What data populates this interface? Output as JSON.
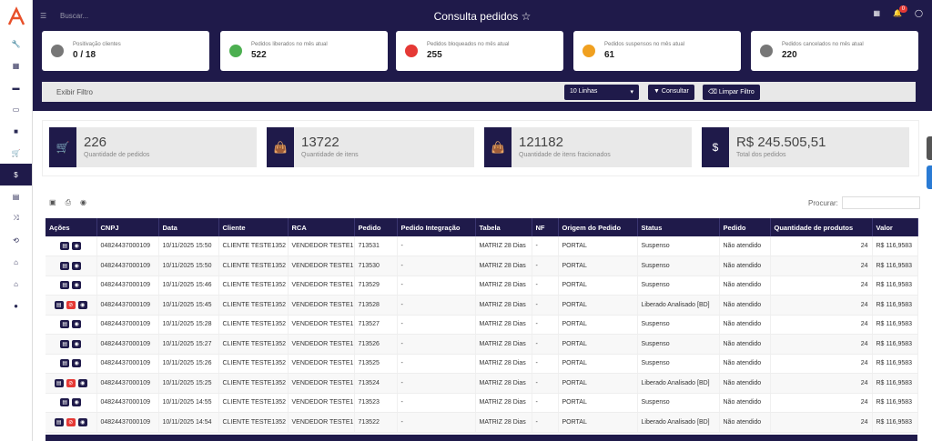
{
  "topbar": {
    "search_placeholder": "Buscar...",
    "title": "Consulta pedidos",
    "notif_count": "0"
  },
  "colors": {
    "primary": "#1f1a4a",
    "green": "#4caf50",
    "red": "#e53935",
    "orange": "#f0a020",
    "grey": "#777"
  },
  "sidebar": {
    "items": [
      "wrench-icon",
      "calculator-icon",
      "book-icon",
      "money-icon",
      "briefcase-icon",
      "cart-icon",
      "dollar-icon",
      "table-icon",
      "shuffle-icon",
      "refresh-icon",
      "store-icon",
      "home-icon",
      "user-icon"
    ]
  },
  "stats": [
    {
      "label": "Positivação clientes",
      "value": "0 / 18",
      "icon": "user-icon",
      "color": "#777"
    },
    {
      "label": "Pedidos liberados no mês atual",
      "value": "522",
      "icon": "check-icon",
      "color": "#4caf50"
    },
    {
      "label": "Pedidos bloqueados no mês atual",
      "value": "255",
      "icon": "lock-icon",
      "color": "#e53935"
    },
    {
      "label": "Pedidos suspensos no mês atual",
      "value": "61",
      "icon": "pause-icon",
      "color": "#f0a020"
    },
    {
      "label": "Pedidos cancelados no mês atual",
      "value": "220",
      "icon": "x-icon",
      "color": "#777"
    }
  ],
  "filter": {
    "toggle": "Exibir Filtro",
    "lines": "10 Linhas",
    "consultar": "Consultar",
    "limpar": "Limpar Filtro"
  },
  "kpis": [
    {
      "value": "226",
      "label": "Quantidade de pedidos",
      "icon": "cart-icon"
    },
    {
      "value": "13722",
      "label": "Quantidade de itens",
      "icon": "bag-icon"
    },
    {
      "value": "121182",
      "label": "Quantidade de itens fracionados",
      "icon": "bag-icon"
    },
    {
      "value": "R$ 245.505,51",
      "label": "Total dos pedidos",
      "icon": "dollar-icon"
    }
  ],
  "table": {
    "search_label": "Procurar:",
    "headers": [
      "Ações",
      "CNPJ",
      "Data",
      "Cliente",
      "RCA",
      "Pedido",
      "Pedido Integração",
      "Tabela",
      "NF",
      "Origem do Pedido",
      "Status",
      "Pedido",
      "Quantidade de produtos",
      "Valor"
    ],
    "rows": [
      {
        "cnpj": "04824437000109",
        "data": "10/11/2025 15:50",
        "cliente": "CLIENTE TESTE1352",
        "rca": "VENDEDOR TESTE1",
        "pedido": "713531",
        "integ": "-",
        "tabela": "MATRIZ 28 Dias",
        "nf": "-",
        "origem": "PORTAL",
        "status": "Suspenso",
        "ped": "Não atendido",
        "qtd": "24",
        "valor": "R$ 116,9583",
        "red": false
      },
      {
        "cnpj": "04824437000109",
        "data": "10/11/2025 15:50",
        "cliente": "CLIENTE TESTE1352",
        "rca": "VENDEDOR TESTE1",
        "pedido": "713530",
        "integ": "-",
        "tabela": "MATRIZ 28 Dias",
        "nf": "-",
        "origem": "PORTAL",
        "status": "Suspenso",
        "ped": "Não atendido",
        "qtd": "24",
        "valor": "R$ 116,9583",
        "red": false
      },
      {
        "cnpj": "04824437000109",
        "data": "10/11/2025 15:46",
        "cliente": "CLIENTE TESTE1352",
        "rca": "VENDEDOR TESTE1",
        "pedido": "713529",
        "integ": "-",
        "tabela": "MATRIZ 28 Dias",
        "nf": "-",
        "origem": "PORTAL",
        "status": "Suspenso",
        "ped": "Não atendido",
        "qtd": "24",
        "valor": "R$ 116,9583",
        "red": false
      },
      {
        "cnpj": "04824437000109",
        "data": "10/11/2025 15:45",
        "cliente": "CLIENTE TESTE1352",
        "rca": "VENDEDOR TESTE1",
        "pedido": "713528",
        "integ": "-",
        "tabela": "MATRIZ 28 Dias",
        "nf": "-",
        "origem": "PORTAL",
        "status": "Liberado Analisado [BD]",
        "ped": "Não atendido",
        "qtd": "24",
        "valor": "R$ 116,9583",
        "red": true
      },
      {
        "cnpj": "04824437000109",
        "data": "10/11/2025 15:28",
        "cliente": "CLIENTE TESTE1352",
        "rca": "VENDEDOR TESTE1",
        "pedido": "713527",
        "integ": "-",
        "tabela": "MATRIZ 28 Dias",
        "nf": "-",
        "origem": "PORTAL",
        "status": "Suspenso",
        "ped": "Não atendido",
        "qtd": "24",
        "valor": "R$ 116,9583",
        "red": false
      },
      {
        "cnpj": "04824437000109",
        "data": "10/11/2025 15:27",
        "cliente": "CLIENTE TESTE1352",
        "rca": "VENDEDOR TESTE1",
        "pedido": "713526",
        "integ": "-",
        "tabela": "MATRIZ 28 Dias",
        "nf": "-",
        "origem": "PORTAL",
        "status": "Suspenso",
        "ped": "Não atendido",
        "qtd": "24",
        "valor": "R$ 116,9583",
        "red": false
      },
      {
        "cnpj": "04824437000109",
        "data": "10/11/2025 15:26",
        "cliente": "CLIENTE TESTE1352",
        "rca": "VENDEDOR TESTE1",
        "pedido": "713525",
        "integ": "-",
        "tabela": "MATRIZ 28 Dias",
        "nf": "-",
        "origem": "PORTAL",
        "status": "Suspenso",
        "ped": "Não atendido",
        "qtd": "24",
        "valor": "R$ 116,9583",
        "red": false
      },
      {
        "cnpj": "04824437000109",
        "data": "10/11/2025 15:25",
        "cliente": "CLIENTE TESTE1352",
        "rca": "VENDEDOR TESTE1",
        "pedido": "713524",
        "integ": "-",
        "tabela": "MATRIZ 28 Dias",
        "nf": "-",
        "origem": "PORTAL",
        "status": "Liberado Analisado [BD]",
        "ped": "Não atendido",
        "qtd": "24",
        "valor": "R$ 116,9583",
        "red": true
      },
      {
        "cnpj": "04824437000109",
        "data": "10/11/2025 14:55",
        "cliente": "CLIENTE TESTE1352",
        "rca": "VENDEDOR TESTE1",
        "pedido": "713523",
        "integ": "-",
        "tabela": "MATRIZ 28 Dias",
        "nf": "-",
        "origem": "PORTAL",
        "status": "Suspenso",
        "ped": "Não atendido",
        "qtd": "24",
        "valor": "R$ 116,9583",
        "red": false
      },
      {
        "cnpj": "04824437000109",
        "data": "10/11/2025 14:54",
        "cliente": "CLIENTE TESTE1352",
        "rca": "VENDEDOR TESTE1",
        "pedido": "713522",
        "integ": "-",
        "tabela": "MATRIZ 28 Dias",
        "nf": "-",
        "origem": "PORTAL",
        "status": "Liberado Analisado [BD]",
        "ped": "Não atendido",
        "qtd": "24",
        "valor": "R$ 116,9583",
        "red": true
      }
    ]
  }
}
